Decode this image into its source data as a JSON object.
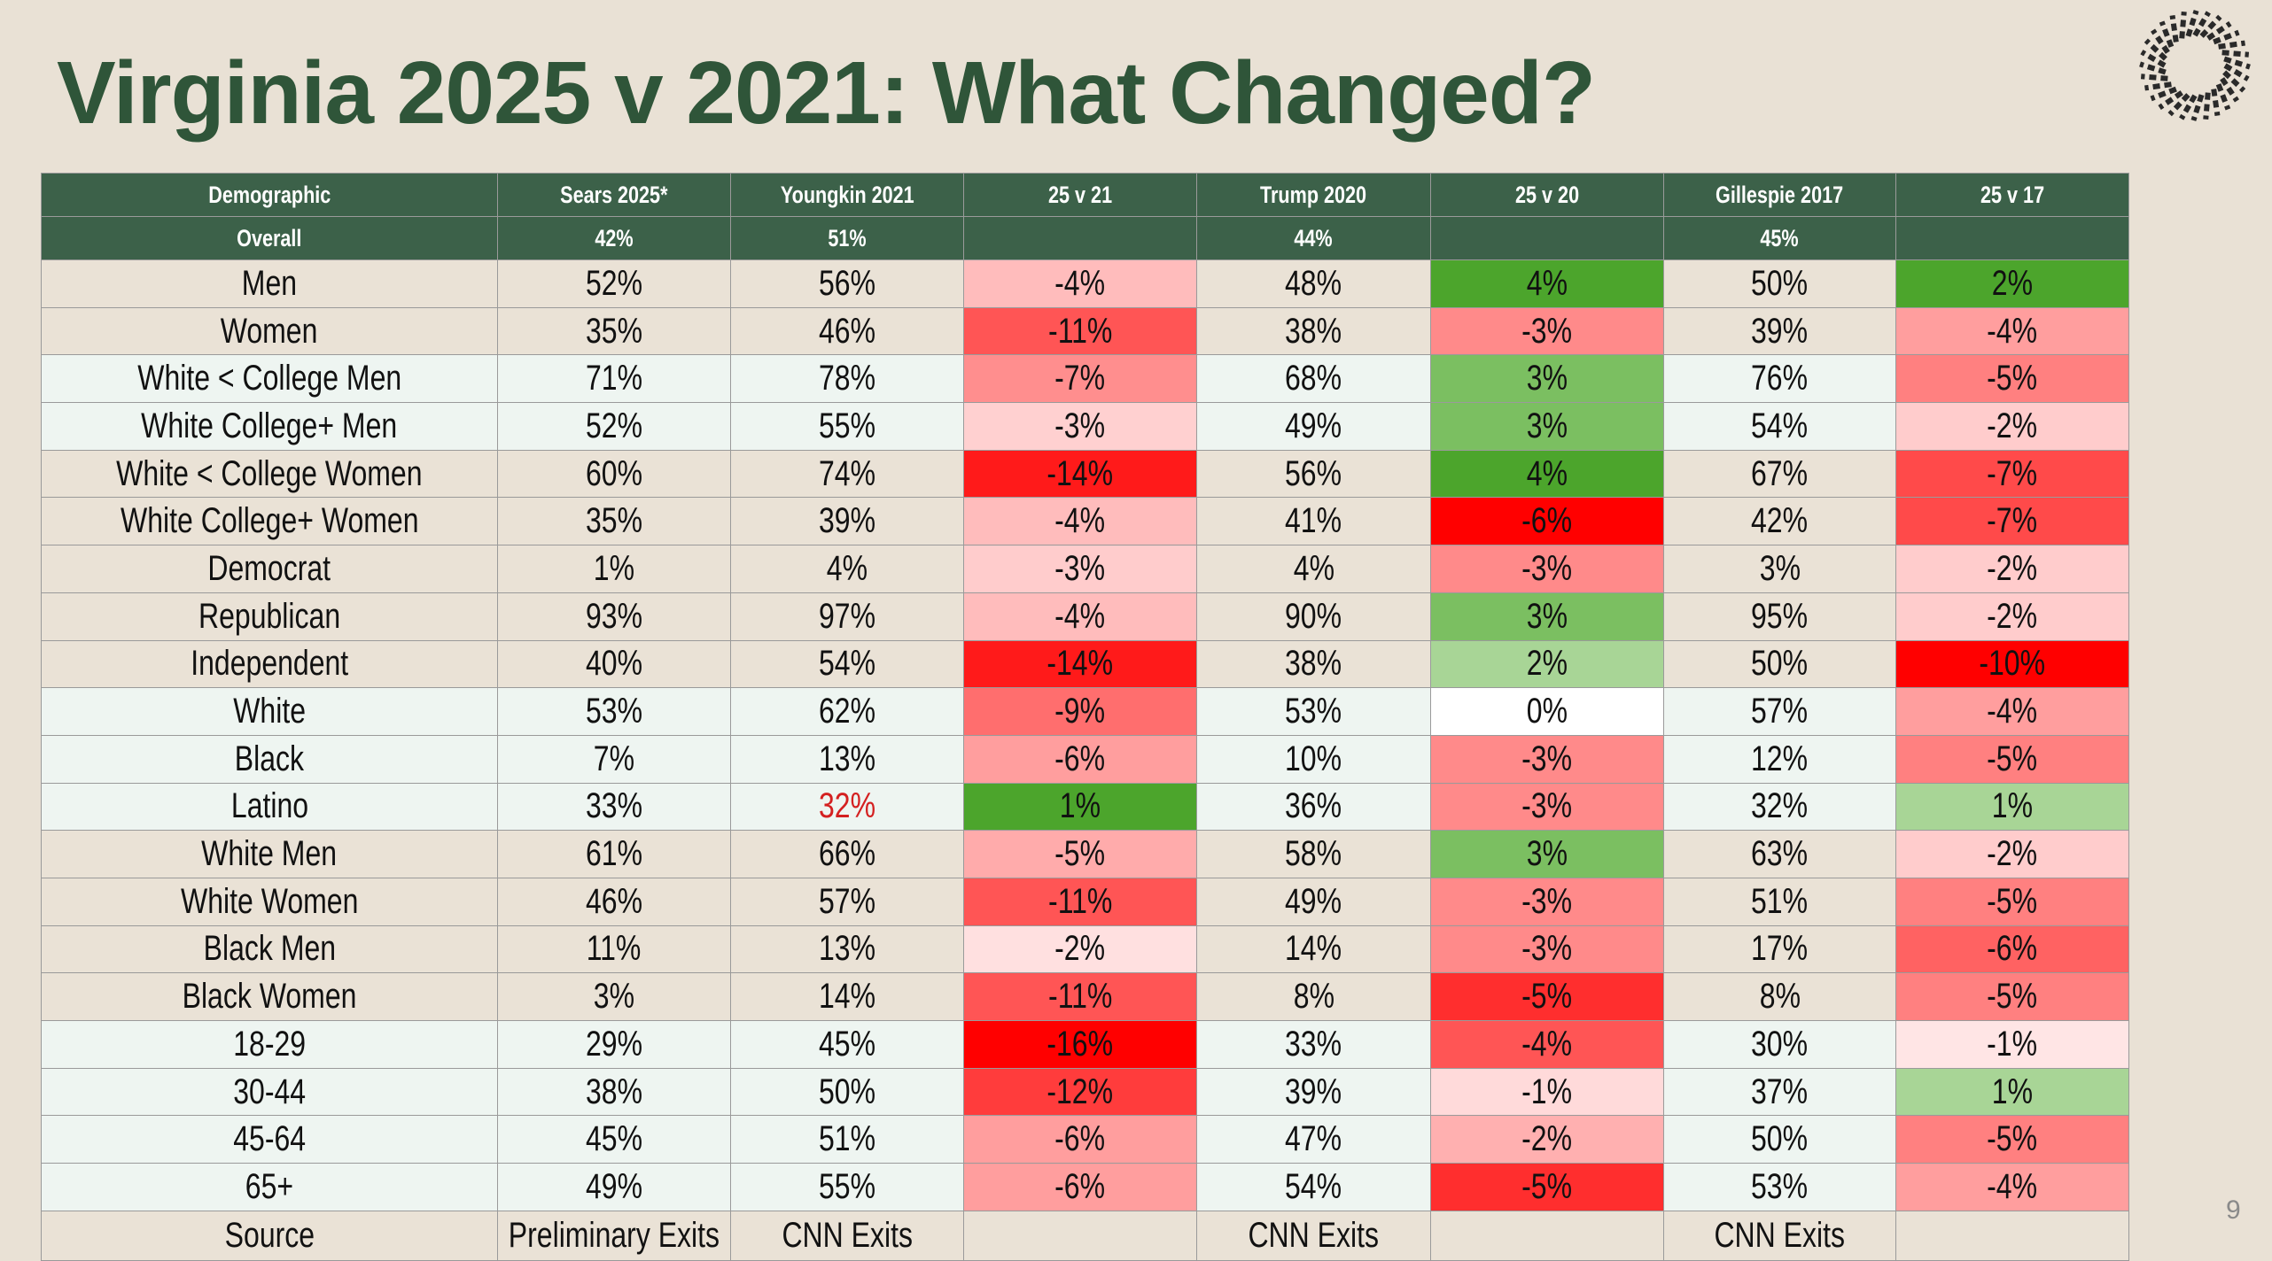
{
  "title": "Virginia 2025 v 2021: What Changed?",
  "page_number": "9",
  "table": {
    "header": [
      "Demographic",
      "Sears 2025*",
      "Youngkin 2021",
      "25 v 21",
      "Trump 2020",
      "25 v 20",
      "Gillespie 2017",
      "25 v 17"
    ],
    "overall": [
      "Overall",
      "42%",
      "51%",
      null,
      "44%",
      null,
      "45%",
      null
    ],
    "header_color": "#3c6149",
    "rows": [
      {
        "cells": [
          "Men",
          "52%",
          "56%",
          "-4%",
          "48%",
          "4%",
          "50%",
          "2%"
        ],
        "fill": "#eae2d6",
        "colors": [
          "#ffbcbc",
          "#4ca52c",
          "#4ca52c"
        ]
      },
      {
        "cells": [
          "Women",
          "35%",
          "46%",
          "-11%",
          "38%",
          "-3%",
          "39%",
          "-4%"
        ],
        "fill": "#eae2d6",
        "colors": [
          "#ff5555",
          "#ff8a8a",
          "#ff9e9e"
        ]
      },
      {
        "cells": [
          "White < College Men",
          "71%",
          "78%",
          "-7%",
          "68%",
          "3%",
          "76%",
          "-5%"
        ],
        "fill": "#eef5f1",
        "colors": [
          "#ff8e8e",
          "#7bbf61",
          "#ff8080"
        ]
      },
      {
        "cells": [
          "White College+ Men",
          "52%",
          "55%",
          "-3%",
          "49%",
          "3%",
          "54%",
          "-2%"
        ],
        "fill": "#eef5f1",
        "colors": [
          "#ffd0d0",
          "#7bbf61",
          "#ffcccc"
        ]
      },
      {
        "cells": [
          "White < College Women",
          "60%",
          "74%",
          "-14%",
          "56%",
          "4%",
          "67%",
          "-7%"
        ],
        "fill": "#eae2d6",
        "colors": [
          "#ff1a1a",
          "#4ca52c",
          "#ff4a4a"
        ]
      },
      {
        "cells": [
          "White College+ Women",
          "35%",
          "39%",
          "-4%",
          "41%",
          "-6%",
          "42%",
          "-7%"
        ],
        "fill": "#eae2d6",
        "colors": [
          "#ffbcbc",
          "#ff0000",
          "#ff4a4a"
        ]
      },
      {
        "cells": [
          "Democrat",
          "1%",
          "4%",
          "-3%",
          "4%",
          "-3%",
          "3%",
          "-2%"
        ],
        "fill": "#eae2d6",
        "colors": [
          "#ffcccc",
          "#ff8a8a",
          "#ffcccc"
        ]
      },
      {
        "cells": [
          "Republican",
          "93%",
          "97%",
          "-4%",
          "90%",
          "3%",
          "95%",
          "-2%"
        ],
        "fill": "#eae2d6",
        "colors": [
          "#ffbcbc",
          "#7bbf61",
          "#ffcccc"
        ]
      },
      {
        "cells": [
          "Independent",
          "40%",
          "54%",
          "-14%",
          "38%",
          "2%",
          "50%",
          "-10%"
        ],
        "fill": "#eae2d6",
        "colors": [
          "#ff1a1a",
          "#a8d596",
          "#ff0000"
        ]
      },
      {
        "cells": [
          "White",
          "53%",
          "62%",
          "-9%",
          "53%",
          "0%",
          "57%",
          "-4%"
        ],
        "fill": "#eef5f1",
        "colors": [
          "#ff6e6e",
          "#ffffff",
          "#ff9e9e"
        ]
      },
      {
        "cells": [
          "Black",
          "7%",
          "13%",
          "-6%",
          "10%",
          "-3%",
          "12%",
          "-5%"
        ],
        "fill": "#eef5f1",
        "colors": [
          "#ff9e9e",
          "#ff8a8a",
          "#ff8080"
        ]
      },
      {
        "cells": [
          "Latino",
          "33%",
          "32%",
          "1%",
          "36%",
          "-3%",
          "32%",
          "1%"
        ],
        "fill": "#eef5f1",
        "colors": [
          "#4ca52c",
          "#ff8a8a",
          "#a8d596"
        ],
        "highlight_column": 2,
        "highlight_color": "#d42020"
      },
      {
        "cells": [
          "White Men",
          "61%",
          "66%",
          "-5%",
          "58%",
          "3%",
          "63%",
          "-2%"
        ],
        "fill": "#eae2d6",
        "colors": [
          "#ffabab",
          "#7bbf61",
          "#ffcccc"
        ]
      },
      {
        "cells": [
          "White Women",
          "46%",
          "57%",
          "-11%",
          "49%",
          "-3%",
          "51%",
          "-5%"
        ],
        "fill": "#eae2d6",
        "colors": [
          "#ff5555",
          "#ff8a8a",
          "#ff8080"
        ]
      },
      {
        "cells": [
          "Black Men",
          "11%",
          "13%",
          "-2%",
          "14%",
          "-3%",
          "17%",
          "-6%"
        ],
        "fill": "#eae2d6",
        "colors": [
          "#ffe0e0",
          "#ff8a8a",
          "#ff6262"
        ]
      },
      {
        "cells": [
          "Black Women",
          "3%",
          "14%",
          "-11%",
          "8%",
          "-5%",
          "8%",
          "-5%"
        ],
        "fill": "#eae2d6",
        "colors": [
          "#ff5555",
          "#ff2e2e",
          "#ff8080"
        ]
      },
      {
        "cells": [
          "18-29",
          "29%",
          "45%",
          "-16%",
          "33%",
          "-4%",
          "30%",
          "-1%"
        ],
        "fill": "#eef5f1",
        "colors": [
          "#ff0000",
          "#ff5555",
          "#ffe5e5"
        ]
      },
      {
        "cells": [
          "30-44",
          "38%",
          "50%",
          "-12%",
          "39%",
          "-1%",
          "37%",
          "1%"
        ],
        "fill": "#eef5f1",
        "colors": [
          "#ff3c3c",
          "#ffdada",
          "#a8d596"
        ]
      },
      {
        "cells": [
          "45-64",
          "45%",
          "51%",
          "-6%",
          "47%",
          "-2%",
          "50%",
          "-5%"
        ],
        "fill": "#eef5f1",
        "colors": [
          "#ff9e9e",
          "#ffb0b0",
          "#ff8080"
        ]
      },
      {
        "cells": [
          "65+",
          "49%",
          "55%",
          "-6%",
          "54%",
          "-5%",
          "53%",
          "-4%"
        ],
        "fill": "#eef5f1",
        "colors": [
          "#ff9e9e",
          "#ff2e2e",
          "#ff9e9e"
        ]
      }
    ],
    "source": {
      "cells": [
        "Source",
        "Preliminary Exits",
        "CNN Exits",
        null,
        "CNN Exits",
        null,
        "CNN Exits",
        null
      ],
      "fill": "#eae2d6"
    }
  }
}
